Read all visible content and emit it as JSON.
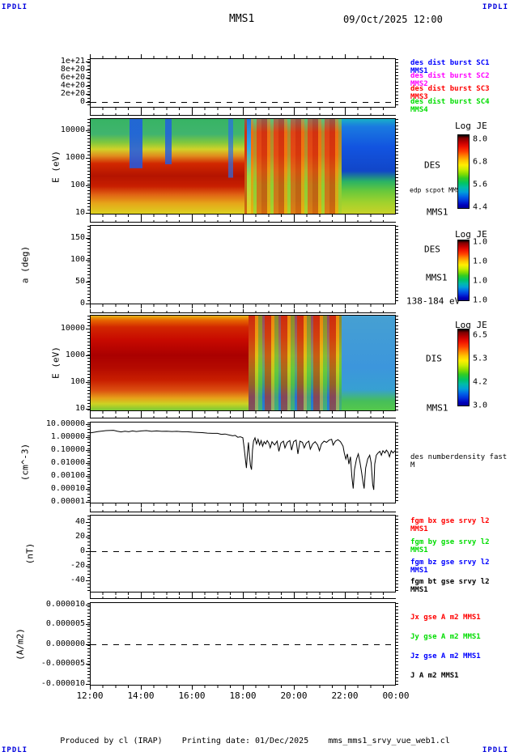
{
  "header": {
    "corner_left": "IPDLI",
    "corner_right": "IPDLI",
    "title": "MMS1",
    "datetime": "09/Oct/2025 12:00"
  },
  "footer": {
    "corner_left": "IPDLI",
    "corner_right": "IPDLI",
    "produced_by": "Produced by cl (IRAP)",
    "printing_date": "Printing date: 01/Dec/2025",
    "filename": "mms_mms1_srvy_vue_web1.cl"
  },
  "xaxis": {
    "tick_labels": [
      "12:00",
      "14:00",
      "16:00",
      "18:00",
      "20:00",
      "22:00",
      "00:00"
    ]
  },
  "panels": [
    {
      "yticks": [
        "1e+21",
        "8e+20",
        "6e+20",
        "4e+20",
        "2e+20",
        "0"
      ],
      "legend": [
        {
          "text": "des dist burst SC1 MMS1",
          "color": "#0000ff"
        },
        {
          "text": "des dist burst SC2 MMS2",
          "color": "#ff00ff"
        },
        {
          "text": "des dist burst SC3 MMS3",
          "color": "#ff0000"
        },
        {
          "text": "des dist burst SC4 MMS4",
          "color": "#00dd00"
        }
      ]
    },
    {
      "unit": "E (eV)",
      "yticks": [
        "10000",
        "1000",
        "100",
        "10"
      ],
      "labels": {
        "instrument": "DES",
        "extra": "edp scpot MMS1",
        "spacecraft": "MMS1"
      },
      "colorbar": {
        "title": "Log JE",
        "ticks": [
          "8.0",
          "6.8",
          "5.6",
          "4.4"
        ]
      }
    },
    {
      "unit": "a (deg)",
      "yticks": [
        "150",
        "100",
        "50",
        "0"
      ],
      "labels": {
        "instrument": "DES",
        "spacecraft": "MMS1",
        "energy": "138-184 eV"
      },
      "colorbar": {
        "title": "Log JE",
        "ticks": [
          "1.0",
          "1.0",
          "1.0",
          "1.0"
        ]
      }
    },
    {
      "unit": "E (eV)",
      "yticks": [
        "10000",
        "1000",
        "100",
        "10"
      ],
      "labels": {
        "instrument": "DIS",
        "spacecraft": "MMS1"
      },
      "colorbar": {
        "title": "Log JE",
        "ticks": [
          "6.5",
          "5.3",
          "4.2",
          "3.0"
        ]
      }
    },
    {
      "unit": "(cm^-3)",
      "yticks": [
        "10.00000",
        "1.00000",
        "0.10000",
        "0.01000",
        "0.00100",
        "0.00010",
        "0.00001"
      ],
      "labels": {
        "series": "des numberdensity fast M"
      }
    },
    {
      "unit": "(nT)",
      "yticks": [
        "40",
        "20",
        "0",
        "-20",
        "-40"
      ],
      "legend": [
        {
          "text": "fgm bx gse srvy l2 MMS1",
          "color": "#ff0000"
        },
        {
          "text": "fgm by gse srvy l2 MMS1",
          "color": "#00dd00"
        },
        {
          "text": "fgm bz gse srvy l2 MMS1",
          "color": "#0000ff"
        },
        {
          "text": "fgm bt gse srvy l2 MMS1",
          "color": "#000000"
        }
      ]
    },
    {
      "unit": "(A/m2)",
      "yticks": [
        "0.000010",
        "0.000005",
        "0.000000",
        "-0.000005",
        "-0.000010"
      ],
      "legend": [
        {
          "text": "Jx gse A m2 MMS1",
          "color": "#ff0000"
        },
        {
          "text": "Jy gse A m2 MMS1",
          "color": "#00dd00"
        },
        {
          "text": "Jz gse A m2 MMS1",
          "color": "#0000ff"
        },
        {
          "text": "J A m2 MMS1",
          "color": "#000000"
        }
      ]
    }
  ],
  "chart_data": [
    {
      "panel": 1,
      "type": "line",
      "title": "des dist burst SC1-SC4",
      "xrange": [
        "12:00",
        "00:00"
      ],
      "ylim": [
        0,
        1.1e+21
      ],
      "ytick_values": [
        0,
        2e+20,
        4e+20,
        6e+20,
        8e+20,
        1e+21
      ],
      "series": [
        {
          "name": "des dist burst SC1 MMS1",
          "color": "#0000ff",
          "values": []
        },
        {
          "name": "des dist burst SC2 MMS2",
          "color": "#ff00ff",
          "values": []
        },
        {
          "name": "des dist burst SC3 MMS3",
          "color": "#ff0000",
          "values": []
        },
        {
          "name": "des dist burst SC4 MMS4",
          "color": "#00dd00",
          "values": []
        }
      ],
      "note": "no visible data; dashed reference line at 0"
    },
    {
      "panel": 2,
      "type": "heatmap",
      "name": "DES electron energy spectrogram",
      "spacecraft": "MMS1",
      "ylabel": "E (eV)",
      "yscale": "log",
      "ylim": [
        10,
        30000
      ],
      "xrange": [
        "12:00",
        "00:00"
      ],
      "colorbar": {
        "title": "Log JE",
        "tick_labels": [
          8.0,
          6.8,
          5.6,
          4.4
        ],
        "range": [
          4.4,
          8.0
        ]
      },
      "description": "intense red flux 50-1000 eV from 12:00-18:00 with blue high-energy background; bursty red structures 300-10000 eV 18:00-22:00; blue above ~1 keV with green/yellow low energies after 22:00"
    },
    {
      "panel": 3,
      "type": "heatmap",
      "name": "DES pitch angle spectrogram",
      "spacecraft": "MMS1",
      "ylabel": "a (deg)",
      "yscale": "linear",
      "ylim": [
        0,
        180
      ],
      "ytick_values": [
        0,
        50,
        100,
        150
      ],
      "energy_range": "138-184 eV",
      "xrange": [
        "12:00",
        "00:00"
      ],
      "colorbar": {
        "title": "Log JE",
        "tick_labels": [
          1.0,
          1.0,
          1.0,
          1.0
        ],
        "range": [
          1.0,
          1.0
        ]
      },
      "note": "panel empty (no data)"
    },
    {
      "panel": 4,
      "type": "heatmap",
      "name": "DIS ion energy spectrogram",
      "spacecraft": "MMS1",
      "ylabel": "E (eV)",
      "yscale": "log",
      "ylim": [
        10,
        30000
      ],
      "xrange": [
        "12:00",
        "00:00"
      ],
      "colorbar": {
        "title": "Log JE",
        "tick_labels": [
          6.5,
          5.3,
          4.2,
          3.0
        ],
        "range": [
          3.0,
          6.5
        ]
      },
      "description": "broad intense red flux 100 eV-20 keV from 12:00-~17:45; striped red/yellow/green mix with blue low-energy patches 18:00-22:00; uniform light blue after 22:00 with green bottom edge"
    },
    {
      "panel": 5,
      "type": "line",
      "name": "des numberdensity fast M",
      "ylabel": "(cm^-3)",
      "yscale": "log",
      "ylim": [
        1e-05,
        10
      ],
      "xrange": [
        "12:00",
        "00:00"
      ],
      "color": "#000000",
      "points": [
        [
          12.0,
          2.2
        ],
        [
          12.3,
          2.8
        ],
        [
          12.6,
          3.3
        ],
        [
          12.9,
          3.5
        ],
        [
          13.05,
          3.0
        ],
        [
          13.2,
          2.6
        ],
        [
          13.35,
          3.0
        ],
        [
          13.5,
          2.7
        ],
        [
          13.65,
          3.1
        ],
        [
          13.8,
          2.8
        ],
        [
          14.0,
          3.1
        ],
        [
          14.2,
          3.3
        ],
        [
          14.4,
          2.9
        ],
        [
          14.6,
          3.1
        ],
        [
          14.8,
          2.9
        ],
        [
          15.0,
          3.0
        ],
        [
          15.2,
          2.8
        ],
        [
          15.4,
          2.9
        ],
        [
          15.6,
          2.7
        ],
        [
          15.8,
          2.7
        ],
        [
          16.0,
          2.5
        ],
        [
          16.2,
          2.4
        ],
        [
          16.4,
          2.3
        ],
        [
          16.6,
          2.1
        ],
        [
          16.8,
          2.0
        ],
        [
          17.0,
          2.0
        ],
        [
          17.15,
          1.7
        ],
        [
          17.3,
          1.8
        ],
        [
          17.45,
          1.5
        ],
        [
          17.6,
          1.3
        ],
        [
          17.7,
          1.4
        ],
        [
          17.8,
          1.0
        ],
        [
          17.9,
          1.1
        ],
        [
          18.0,
          0.9
        ],
        [
          18.05,
          0.15
        ],
        [
          18.1,
          0.02
        ],
        [
          18.14,
          0.004
        ],
        [
          18.18,
          0.05
        ],
        [
          18.22,
          0.4
        ],
        [
          18.26,
          0.04
        ],
        [
          18.3,
          0.006
        ],
        [
          18.34,
          0.003
        ],
        [
          18.38,
          0.1
        ],
        [
          18.42,
          0.5
        ],
        [
          18.48,
          0.9
        ],
        [
          18.54,
          0.3
        ],
        [
          18.6,
          0.7
        ],
        [
          18.66,
          0.25
        ],
        [
          18.72,
          0.55
        ],
        [
          18.78,
          0.2
        ],
        [
          18.84,
          0.45
        ],
        [
          18.9,
          0.3
        ],
        [
          18.96,
          0.55
        ],
        [
          19.02,
          0.35
        ],
        [
          19.08,
          0.15
        ],
        [
          19.15,
          0.45
        ],
        [
          19.25,
          0.25
        ],
        [
          19.35,
          0.5
        ],
        [
          19.42,
          0.08
        ],
        [
          19.5,
          0.35
        ],
        [
          19.6,
          0.5
        ],
        [
          19.66,
          0.15
        ],
        [
          19.75,
          0.4
        ],
        [
          19.85,
          0.55
        ],
        [
          19.92,
          0.1
        ],
        [
          20.0,
          0.45
        ],
        [
          20.1,
          0.6
        ],
        [
          20.17,
          0.05
        ],
        [
          20.25,
          0.5
        ],
        [
          20.35,
          0.4
        ],
        [
          20.42,
          0.15
        ],
        [
          20.5,
          0.35
        ],
        [
          20.6,
          0.5
        ],
        [
          20.66,
          0.12
        ],
        [
          20.75,
          0.3
        ],
        [
          20.85,
          0.45
        ],
        [
          20.95,
          0.25
        ],
        [
          21.02,
          0.09
        ],
        [
          21.1,
          0.3
        ],
        [
          21.2,
          0.5
        ],
        [
          21.3,
          0.4
        ],
        [
          21.4,
          0.6
        ],
        [
          21.5,
          0.7
        ],
        [
          21.56,
          0.25
        ],
        [
          21.65,
          0.5
        ],
        [
          21.75,
          0.65
        ],
        [
          21.85,
          0.45
        ],
        [
          21.95,
          0.2
        ],
        [
          22.0,
          0.06
        ],
        [
          22.06,
          0.02
        ],
        [
          22.12,
          0.05
        ],
        [
          22.18,
          0.008
        ],
        [
          22.24,
          0.03
        ],
        [
          22.3,
          0.0008
        ],
        [
          22.35,
          0.0001
        ],
        [
          22.4,
          0.003
        ],
        [
          22.48,
          0.02
        ],
        [
          22.55,
          0.05
        ],
        [
          22.62,
          0.01
        ],
        [
          22.68,
          0.002
        ],
        [
          22.74,
          0.0003
        ],
        [
          22.78,
          0.0001
        ],
        [
          22.84,
          0.004
        ],
        [
          22.92,
          0.02
        ],
        [
          23.0,
          0.04
        ],
        [
          23.06,
          0.01
        ],
        [
          23.12,
          0.0002
        ],
        [
          23.16,
          8e-05
        ],
        [
          23.2,
          0.008
        ],
        [
          23.26,
          0.04
        ],
        [
          23.33,
          0.06
        ],
        [
          23.4,
          0.08
        ],
        [
          23.46,
          0.04
        ],
        [
          23.52,
          0.09
        ],
        [
          23.6,
          0.06
        ],
        [
          23.66,
          0.1
        ],
        [
          23.72,
          0.07
        ],
        [
          23.78,
          0.03
        ],
        [
          23.85,
          0.09
        ],
        [
          23.92,
          0.06
        ],
        [
          24.0,
          0.09
        ]
      ]
    },
    {
      "panel": 6,
      "type": "line",
      "name": "fgm b gse srvy l2 MMS1",
      "ylabel": "(nT)",
      "ylim": [
        -50,
        50
      ],
      "ytick_values": [
        -40,
        -20,
        0,
        20,
        40
      ],
      "xrange": [
        "12:00",
        "00:00"
      ],
      "series": [
        {
          "name": "fgm bx gse srvy l2 MMS1",
          "color": "#ff0000",
          "values": []
        },
        {
          "name": "fgm by gse srvy l2 MMS1",
          "color": "#00dd00",
          "values": []
        },
        {
          "name": "fgm bz gse srvy l2 MMS1",
          "color": "#0000ff",
          "values": []
        },
        {
          "name": "fgm bt gse srvy l2 MMS1",
          "color": "#000000",
          "values": []
        }
      ],
      "note": "no visible data; dashed reference line at 0"
    },
    {
      "panel": 7,
      "type": "line",
      "name": "J gse A m2 MMS1",
      "ylabel": "(A/m2)",
      "ylim": [
        -1e-05,
        1e-05
      ],
      "ytick_values": [
        -1e-05,
        -5e-06,
        0,
        5e-06,
        1e-05
      ],
      "xrange": [
        "12:00",
        "00:00"
      ],
      "series": [
        {
          "name": "Jx gse A m2 MMS1",
          "color": "#ff0000",
          "values": []
        },
        {
          "name": "Jy gse A m2 MMS1",
          "color": "#00dd00",
          "values": []
        },
        {
          "name": "Jz gse A m2 MMS1",
          "color": "#0000ff",
          "values": []
        },
        {
          "name": "J A m2 MMS1",
          "color": "#000000",
          "values": []
        }
      ],
      "note": "no visible data; dashed reference line at 0"
    }
  ]
}
